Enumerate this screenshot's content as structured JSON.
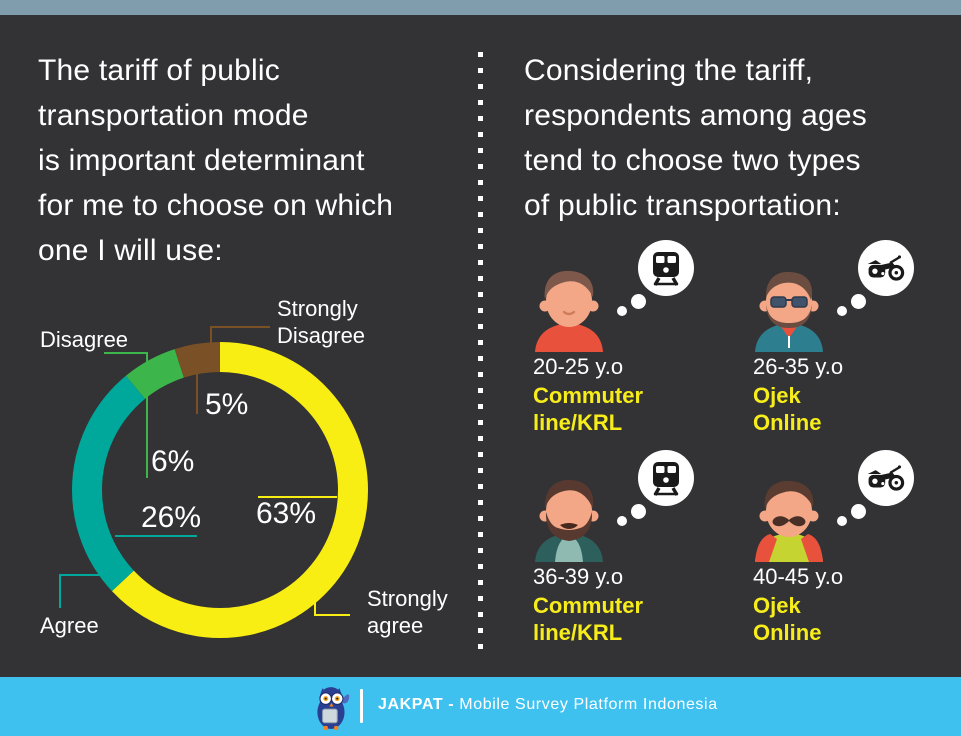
{
  "page": {
    "background": "#333234",
    "top_bar_color": "#7f9dad",
    "footer_color": "#3fc1f0",
    "accent_text_color": "#f7ed1a"
  },
  "left_panel": {
    "headline": "The tariff of public\ntransportation mode\nis important determinant\nfor me to choose on which\none I will use:"
  },
  "right_panel": {
    "headline": "Considering the tariff,\nrespondents among ages\ntend to choose two types\nof public transportation:",
    "personas": [
      {
        "age": "20-25 y.o",
        "choice": "Commuter\nline/KRL",
        "vehicle": "train"
      },
      {
        "age": "26-35 y.o",
        "choice": "Ojek\nOnline",
        "vehicle": "motorcycle"
      },
      {
        "age": "36-39 y.o",
        "choice": "Commuter\nline/KRL",
        "vehicle": "train"
      },
      {
        "age": "40-45 y.o",
        "choice": "Ojek\nOnline",
        "vehicle": "motorcycle"
      }
    ]
  },
  "chart_data": {
    "type": "pie",
    "variant": "donut",
    "question": "The tariff of public transportation mode is important determinant for me to choose on which one I will use:",
    "start_at": "top",
    "direction": "clockwise",
    "donut_thickness_px": 30,
    "segments": [
      {
        "label": "Strongly agree",
        "display": "Strongly\nagree",
        "value": 63,
        "pct": "63%",
        "color": "#f9ee13"
      },
      {
        "label": "Agree",
        "display": "Agree",
        "value": 26,
        "pct": "26%",
        "color": "#00a79b"
      },
      {
        "label": "Disagree",
        "display": "Disagree",
        "value": 6,
        "pct": "6%",
        "color": "#3cb54b"
      },
      {
        "label": "Strongly Disagree",
        "display": "Strongly\nDisagree",
        "value": 5,
        "pct": "5%",
        "color": "#7a5126"
      }
    ]
  },
  "footer": {
    "brand_bold": "JAKPAT -",
    "brand_rest": " Mobile Survey Platform Indonesia",
    "logo": "owl-mascot"
  }
}
